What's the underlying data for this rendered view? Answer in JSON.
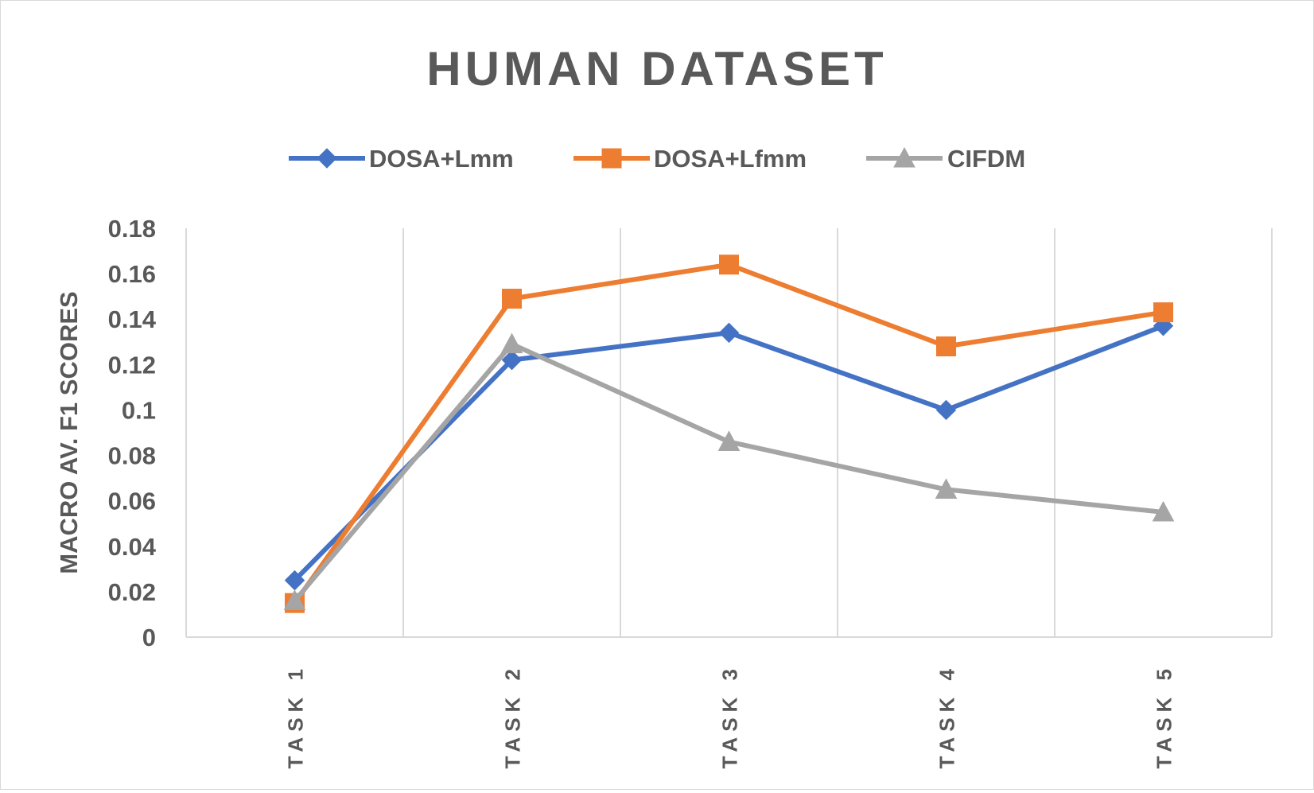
{
  "chart_data": {
    "type": "line",
    "title": "HUMAN DATASET",
    "xlabel": "",
    "ylabel": "MACRO AV. F1 SCORES",
    "categories": [
      "TASK 1",
      "TASK 2",
      "TASK 3",
      "TASK 4",
      "TASK 5"
    ],
    "y_ticks": [
      "0",
      "0.02",
      "0.04",
      "0.06",
      "0.08",
      "0.1",
      "0.12",
      "0.14",
      "0.16",
      "0.18"
    ],
    "ylim": [
      0,
      0.18
    ],
    "grid": "vertical",
    "legend_position": "top",
    "series": [
      {
        "name": "DOSA+Lmm",
        "marker": "diamond",
        "color": "#4472C4",
        "values": [
          0.025,
          0.122,
          0.134,
          0.1,
          0.137
        ]
      },
      {
        "name": "DOSA+Lfmm",
        "marker": "square",
        "color": "#ED7D31",
        "values": [
          0.015,
          0.149,
          0.164,
          0.128,
          0.143
        ]
      },
      {
        "name": "CIFDM",
        "marker": "triangle",
        "color": "#A5A5A5",
        "values": [
          0.016,
          0.129,
          0.086,
          0.065,
          0.055
        ]
      }
    ]
  }
}
